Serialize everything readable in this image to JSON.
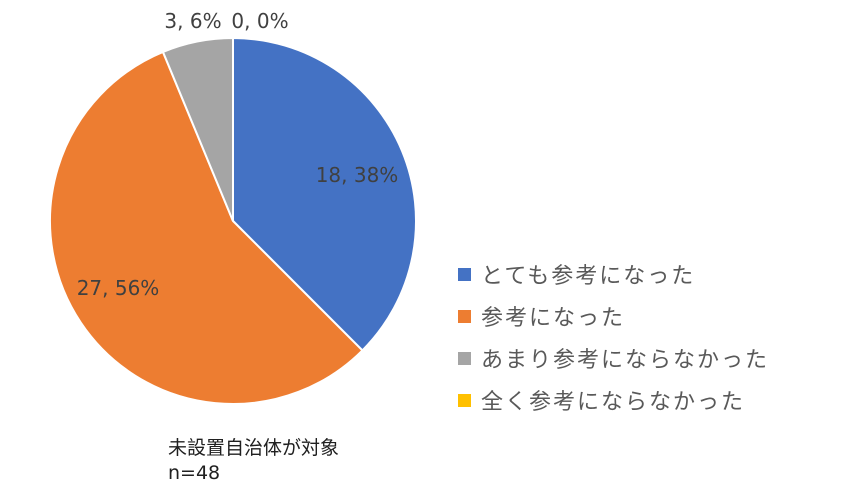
{
  "chart_data": {
    "type": "pie",
    "categories": [
      "とても参考になった",
      "参考になった",
      "あまり参考にならなかった",
      "全く参考にならなかった"
    ],
    "values": [
      18,
      27,
      3,
      0
    ],
    "percentages": [
      38,
      56,
      6,
      0
    ],
    "data_labels": [
      "18, 38%",
      "27, 56%",
      "3, 6%",
      "0, 0%"
    ],
    "colors": [
      "#4472C4",
      "#ED7D31",
      "#A5A5A5",
      "#FFC000"
    ],
    "start_angle": "12 o'clock",
    "direction": "clockwise",
    "legend_position": "right"
  },
  "note": {
    "line1": "未設置自治体が対象",
    "line2": "n=48"
  }
}
